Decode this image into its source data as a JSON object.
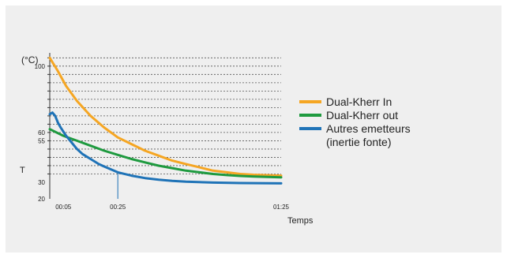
{
  "chart_data": {
    "type": "line",
    "y_unit": "(°C)",
    "y_title": "T",
    "x_title": "Temps",
    "ylim": [
      20,
      108
    ],
    "xlim": [
      0,
      85
    ],
    "x_ticks": [
      {
        "label": "00:05",
        "value": 5
      },
      {
        "label": "00:25",
        "value": 25
      },
      {
        "label": "01:25",
        "value": 85
      }
    ],
    "y_ticks": [
      {
        "label": "100",
        "value": 100
      },
      {
        "label": "60",
        "value": 60
      },
      {
        "label": "55",
        "value": 55
      },
      {
        "label": "30",
        "value": 30
      },
      {
        "label": "20",
        "value": 20
      }
    ],
    "grid_values": [
      35,
      40,
      45,
      50,
      55,
      60,
      65,
      70,
      75,
      80,
      85,
      90,
      95,
      100,
      105
    ],
    "grid": true,
    "reference_line_x": 25,
    "legend_position": "right",
    "series": [
      {
        "name": "Dual-Kherr In",
        "color": "#f5a623",
        "x": [
          0,
          3,
          6,
          10,
          15,
          20,
          25,
          30,
          35,
          40,
          45,
          50,
          55,
          60,
          65,
          70,
          75,
          80,
          85
        ],
        "y": [
          105,
          97,
          88,
          79,
          70,
          63,
          57,
          53,
          49,
          46,
          43,
          41,
          39,
          37,
          36,
          35,
          34.5,
          34.2,
          34
        ]
      },
      {
        "name": "Dual-Kherr out",
        "color": "#1e9a3f",
        "x": [
          0,
          5,
          10,
          15,
          20,
          25,
          30,
          35,
          40,
          45,
          50,
          55,
          60,
          65,
          70,
          75,
          80,
          85
        ],
        "y": [
          62,
          58,
          55,
          52,
          49,
          46.5,
          44,
          42,
          40,
          38.5,
          37,
          36,
          35,
          34.3,
          33.8,
          33.4,
          33.2,
          33
        ]
      },
      {
        "name": "Autres emetteurs\n(inertie fonte)",
        "color": "#1f73b7",
        "x": [
          0,
          1,
          2,
          3,
          4,
          6,
          8,
          10,
          12,
          15,
          18,
          20,
          25,
          30,
          35,
          40,
          45,
          50,
          60,
          70,
          85
        ],
        "y": [
          71,
          72,
          70,
          66,
          63,
          58,
          54,
          50,
          47,
          44,
          41,
          39.5,
          36,
          34,
          32.5,
          31.5,
          30.8,
          30.3,
          29.8,
          29.5,
          29.3
        ]
      }
    ]
  }
}
